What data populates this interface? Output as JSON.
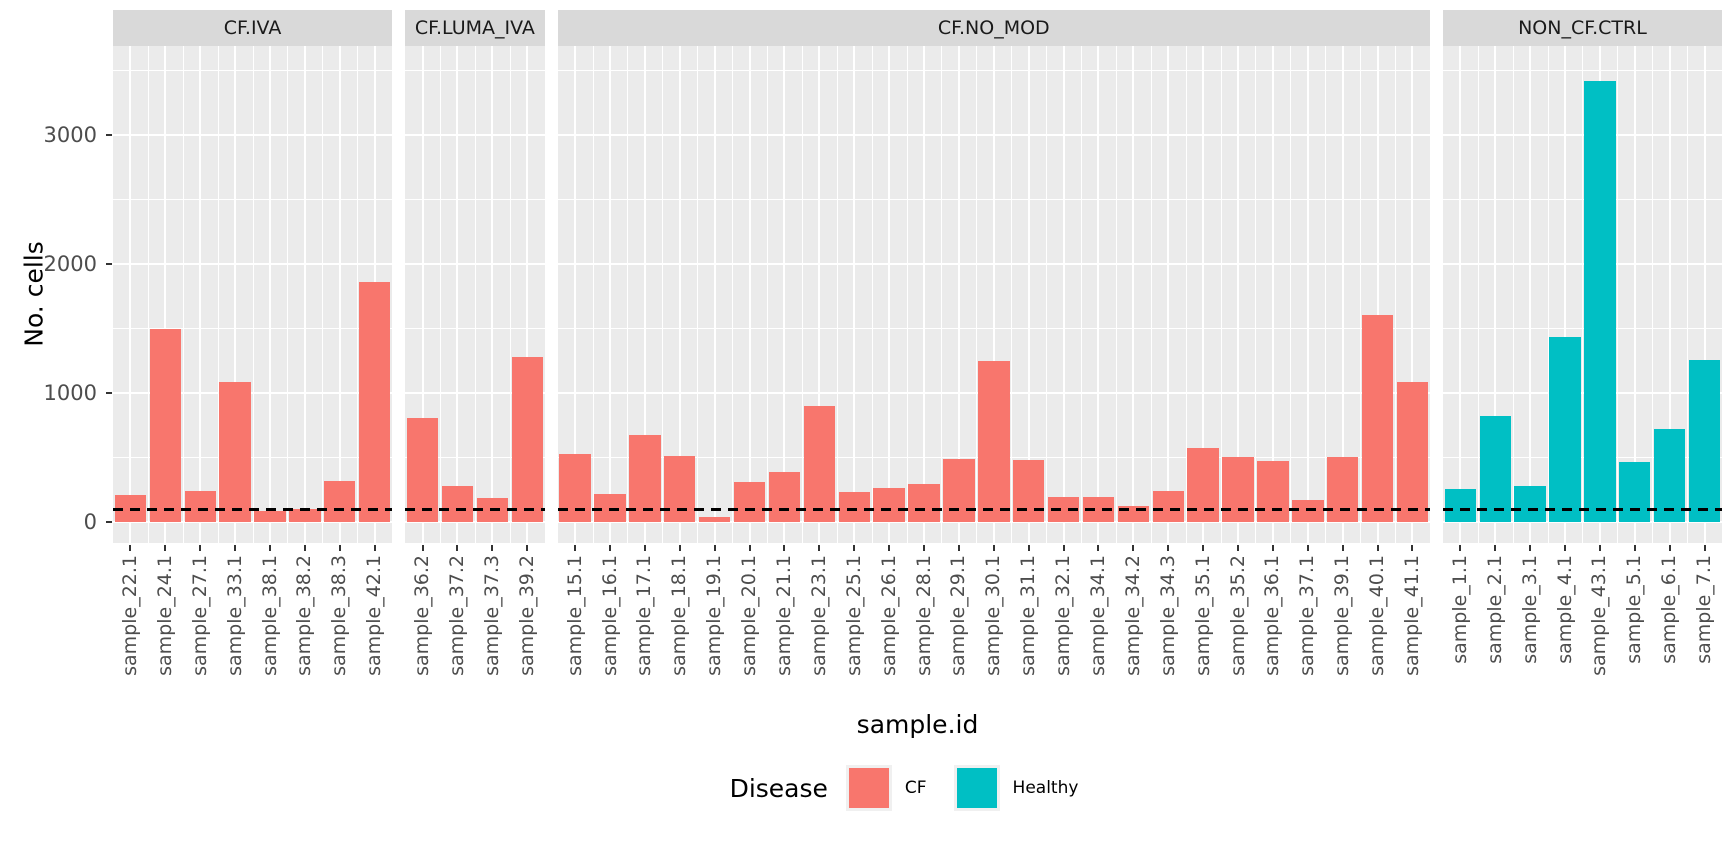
{
  "chart_data": {
    "type": "bar",
    "title": "",
    "xlabel": "sample.id",
    "ylabel": "No. cells",
    "y_ticks": [
      0,
      1000,
      2000,
      3000
    ],
    "y_minor_ticks": [
      500,
      1500,
      2500,
      3500
    ],
    "ylim": [
      -160,
      3690
    ],
    "grid": true,
    "panel_bg": "#EBEBEB",
    "strip_bg": "#D9D9D9",
    "grid_color": "#FFFFFF",
    "tick_text_color": "#4D4D4D",
    "hline": {
      "y": 100,
      "style": "dashed",
      "color": "#000000"
    },
    "legend": {
      "title": "Disease",
      "position": "bottom",
      "entries": [
        {
          "label": "CF",
          "color": "#F8766D"
        },
        {
          "label": "Healthy",
          "color": "#00BFC4"
        }
      ]
    },
    "facets": [
      {
        "label": "CF.IVA",
        "group": "CF",
        "categories": [
          "sample_22.1",
          "sample_24.1",
          "sample_27.1",
          "sample_33.1",
          "sample_38.1",
          "sample_38.2",
          "sample_38.3",
          "sample_42.1"
        ],
        "values": [
          210,
          1500,
          245,
          1090,
          85,
          105,
          320,
          1860
        ]
      },
      {
        "label": "CF.LUMA_IVA",
        "group": "CF",
        "categories": [
          "sample_36.2",
          "sample_37.2",
          "sample_37.3",
          "sample_39.2"
        ],
        "values": [
          805,
          280,
          185,
          1280
        ]
      },
      {
        "label": "CF.NO_MOD",
        "group": "CF",
        "categories": [
          "sample_15.1",
          "sample_16.1",
          "sample_17.1",
          "sample_18.1",
          "sample_19.1",
          "sample_20.1",
          "sample_21.1",
          "sample_23.1",
          "sample_25.1",
          "sample_26.1",
          "sample_28.1",
          "sample_29.1",
          "sample_30.1",
          "sample_31.1",
          "sample_32.1",
          "sample_34.1",
          "sample_34.2",
          "sample_34.3",
          "sample_35.1",
          "sample_35.2",
          "sample_36.1",
          "sample_37.1",
          "sample_39.1",
          "sample_40.1",
          "sample_41.1"
        ],
        "values": [
          530,
          220,
          675,
          515,
          40,
          310,
          390,
          900,
          235,
          265,
          295,
          490,
          1250,
          480,
          200,
          195,
          125,
          240,
          580,
          505,
          475,
          175,
          505,
          1610,
          1085
        ]
      },
      {
        "label": "NON_CF.CTRL",
        "group": "Healthy",
        "categories": [
          "sample_1.1",
          "sample_2.1",
          "sample_3.1",
          "sample_4.1",
          "sample_43.1",
          "sample_5.1",
          "sample_6.1",
          "sample_7.1"
        ],
        "values": [
          260,
          825,
          285,
          1435,
          3420,
          465,
          725,
          1260
        ]
      }
    ]
  }
}
